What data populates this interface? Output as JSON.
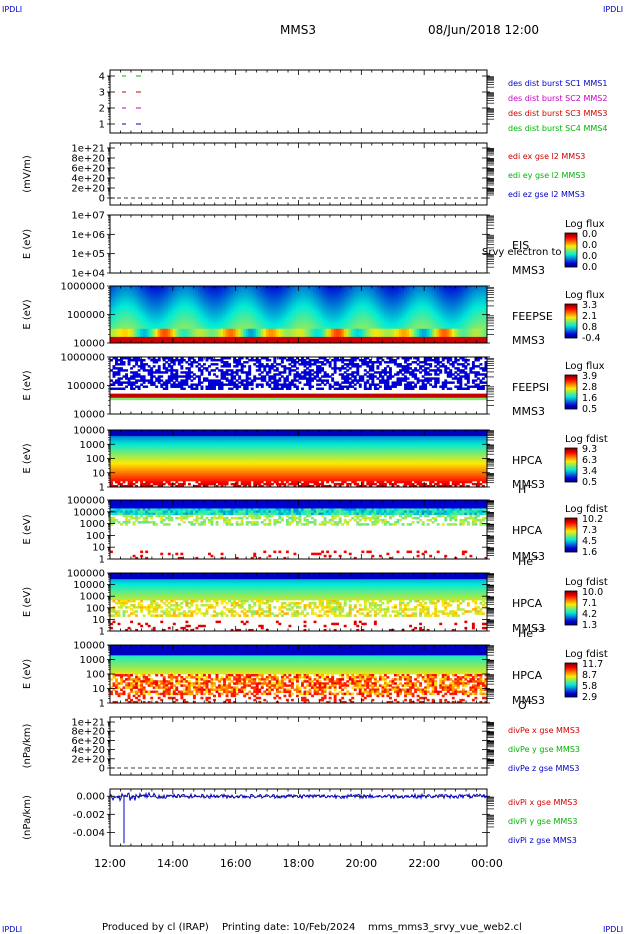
{
  "header": {
    "corner_tl": "IPDLI",
    "corner_tr": "IPDLI",
    "corner_bl": "IPDLI",
    "corner_br": "IPDLI",
    "spacecraft": "MMS3",
    "datetime": "08/Jun/2018 12:00"
  },
  "footer": {
    "produced_by": "Produced by cl (IRAP)",
    "printing_date": "Printing date: 10/Feb/2024",
    "filename": "mms_mms3_srvy_vue_web2.cl"
  },
  "time_axis": {
    "ticks": [
      "12:00",
      "14:00",
      "16:00",
      "18:00",
      "20:00",
      "22:00",
      "00:00"
    ]
  },
  "colors": {
    "red": "#d10000",
    "green": "#00b400",
    "blue": "#0000c8",
    "magenta": "#c800c8"
  },
  "chart_data": [
    {
      "type": "line",
      "name": "des-dist-burst",
      "y_ticks": [
        "4",
        "3",
        "2",
        "1"
      ],
      "legend": [
        {
          "label": "des dist burst SC1 MMS1",
          "color": "#0000c8"
        },
        {
          "label": "des dist burst SC2 MMS2",
          "color": "#c800c8"
        },
        {
          "label": "des dist burst SC3 MMS3",
          "color": "#d10000"
        },
        {
          "label": "des dist burst SC4 MMS4",
          "color": "#00b400"
        }
      ]
    },
    {
      "type": "line",
      "name": "edi-electric-field",
      "ylabel": "(mV/m)",
      "y_ticks": [
        "1e+21",
        "8e+20",
        "6e+20",
        "4e+20",
        "2e+20",
        "0"
      ],
      "legend": [
        {
          "label": "edi ex gse l2 MMS3",
          "color": "#d10000"
        },
        {
          "label": "edi ey gse l2 MMS3",
          "color": "#00b400"
        },
        {
          "label": "edi ez gse l2 MMS3",
          "color": "#0000c8"
        }
      ]
    },
    {
      "type": "heatmap",
      "name": "eis",
      "ylabel": "E (eV)",
      "y_ticks": [
        "1e+07",
        "1e+06",
        "1e+05",
        "1e+04"
      ],
      "instrument": "EIS",
      "overlay_text": "Srvy electron to",
      "sc": "MMS3",
      "colorbar_title": "Log flux",
      "colorbar_ticks": [
        "0.0",
        "0.0",
        "0.0",
        "0.0"
      ]
    },
    {
      "type": "heatmap",
      "name": "feeps-electron",
      "ylabel": "E (eV)",
      "y_ticks": [
        "1000000",
        "100000",
        "10000"
      ],
      "instrument": "FEEPSE",
      "sc": "MMS3",
      "colorbar_title": "Log flux",
      "colorbar_ticks": [
        "3.3",
        "2.1",
        "0.8",
        "-0.4"
      ]
    },
    {
      "type": "heatmap",
      "name": "feeps-ion",
      "ylabel": "E (eV)",
      "y_ticks": [
        "1000000",
        "100000",
        "10000"
      ],
      "instrument": "FEEPSI",
      "sc": "MMS3",
      "colorbar_title": "Log flux",
      "colorbar_ticks": [
        "3.9",
        "2.8",
        "1.6",
        "0.5"
      ]
    },
    {
      "type": "heatmap",
      "name": "hpca-h",
      "ylabel": "E (eV)",
      "y_ticks": [
        "10000",
        "1000",
        "100",
        "10",
        "1"
      ],
      "instrument": "HPCA",
      "sc": "MMS3",
      "species": "H",
      "species_charge": "+",
      "colorbar_title": "Log fdist",
      "colorbar_ticks": [
        "9.3",
        "6.3",
        "3.4",
        "0.5"
      ]
    },
    {
      "type": "heatmap",
      "name": "hpca-he",
      "ylabel": "E (eV)",
      "y_ticks": [
        "100000",
        "10000",
        "1000",
        "100",
        "10",
        "1"
      ],
      "instrument": "HPCA",
      "sc": "MMS3",
      "species": "He",
      "species_charge": "+",
      "colorbar_title": "Log fdist",
      "colorbar_ticks": [
        "10.2",
        "7.3",
        "4.5",
        "1.6"
      ]
    },
    {
      "type": "heatmap",
      "name": "hpca-hepp",
      "ylabel": "E (eV)",
      "y_ticks": [
        "100000",
        "10000",
        "1000",
        "100",
        "10",
        "1"
      ],
      "instrument": "HPCA",
      "sc": "MMS3",
      "species": "He",
      "species_charge": "++",
      "colorbar_title": "Log fdist",
      "colorbar_ticks": [
        "10.0",
        "7.1",
        "4.2",
        "1.3"
      ]
    },
    {
      "type": "heatmap",
      "name": "hpca-o",
      "ylabel": "E (eV)",
      "y_ticks": [
        "10000",
        "1000",
        "100",
        "10",
        "1"
      ],
      "instrument": "HPCA",
      "sc": "MMS3",
      "species": "O",
      "species_charge": "+",
      "colorbar_title": "Log fdist",
      "colorbar_ticks": [
        "11.7",
        "8.7",
        "5.8",
        "2.9"
      ]
    },
    {
      "type": "line",
      "name": "div-pe",
      "ylabel": "(nPa/km)",
      "y_ticks": [
        "1e+21",
        "8e+20",
        "6e+20",
        "4e+20",
        "2e+20",
        "0"
      ],
      "legend": [
        {
          "label": "divPe x gse MMS3",
          "color": "#d10000"
        },
        {
          "label": "divPe y gse MMS3",
          "color": "#00b400"
        },
        {
          "label": "divPe z gse MMS3",
          "color": "#0000c8"
        }
      ]
    },
    {
      "type": "line",
      "name": "div-pi",
      "ylabel": "(nPa/km)",
      "y_ticks": [
        "0.000",
        "-0.002",
        "-0.004"
      ],
      "ylim": [
        -0.0055,
        0.0008
      ],
      "legend": [
        {
          "label": "divPi x gse MMS3",
          "color": "#d10000"
        },
        {
          "label": "divPi y gse MMS3",
          "color": "#00b400"
        },
        {
          "label": "divPi z gse MMS3",
          "color": "#0000c8"
        }
      ]
    }
  ]
}
